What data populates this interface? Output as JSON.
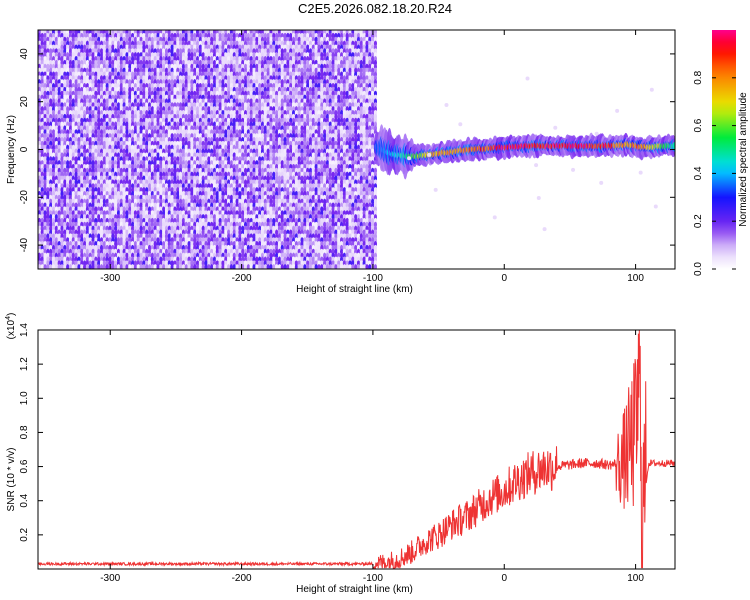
{
  "title": "C2E5.2026.082.18.20.R24",
  "chart_data": [
    {
      "type": "heatmap",
      "xlabel": "Height of straight line (km)",
      "ylabel": "Frequency (Hz)",
      "xlim": [
        -355,
        130
      ],
      "ylim": [
        -50,
        50
      ],
      "xticks": [
        -300,
        -200,
        -100,
        0,
        100
      ],
      "yticks": [
        -40,
        -20,
        0,
        20,
        40
      ],
      "colorbar": {
        "label": "Normalized spectral amplitude",
        "range": [
          0,
          1
        ],
        "ticks": [
          0.0,
          0.2,
          0.4,
          0.6,
          0.8
        ]
      },
      "noise_region": {
        "x": [
          -355,
          -97
        ],
        "y": [
          -50,
          50
        ]
      },
      "signal_ridge": {
        "x": [
          -97,
          -85,
          -70,
          -55,
          -40,
          -25,
          -10,
          0,
          20,
          40,
          60,
          80,
          95,
          105,
          130
        ],
        "frequency": [
          1,
          -2,
          -3,
          -2,
          -1,
          0,
          0.5,
          1,
          1.5,
          1.5,
          1.5,
          1.5,
          2,
          1,
          1.5
        ],
        "amplitude": [
          0.35,
          0.45,
          0.6,
          0.8,
          0.85,
          0.9,
          0.95,
          1.0,
          1.0,
          1.0,
          1.0,
          0.95,
          0.8,
          0.9,
          0.5
        ]
      }
    },
    {
      "type": "line",
      "xlabel": "Height of straight line (km)",
      "ylabel": "SNR (10 * v/v)",
      "y_multiplier": "(x10^4)",
      "xlim": [
        -355,
        130
      ],
      "ylim": [
        0,
        1.4
      ],
      "xticks": [
        -300,
        -200,
        -100,
        0,
        100
      ],
      "yticks": [
        0.2,
        0.4,
        0.6,
        0.8,
        1.0,
        1.2,
        1.4
      ],
      "series": [
        {
          "color": "#ee3333",
          "x": [
            -355,
            -200,
            -110,
            -100,
            -90,
            -80,
            -70,
            -60,
            -50,
            -40,
            -30,
            -20,
            -10,
            0,
            10,
            20,
            30,
            40,
            50,
            60,
            70,
            80,
            90,
            95,
            100,
            103,
            105,
            110,
            120,
            130
          ],
          "y": [
            0.03,
            0.03,
            0.03,
            0.03,
            0.04,
            0.06,
            0.1,
            0.16,
            0.2,
            0.26,
            0.3,
            0.36,
            0.42,
            0.46,
            0.52,
            0.56,
            0.59,
            0.6,
            0.61,
            0.62,
            0.62,
            0.61,
            0.62,
            0.7,
            0.8,
            1.1,
            0.35,
            0.62,
            0.62,
            0.62
          ]
        }
      ]
    }
  ],
  "colors": {
    "line": "#ee3333",
    "noise": "#7a2cf0"
  }
}
